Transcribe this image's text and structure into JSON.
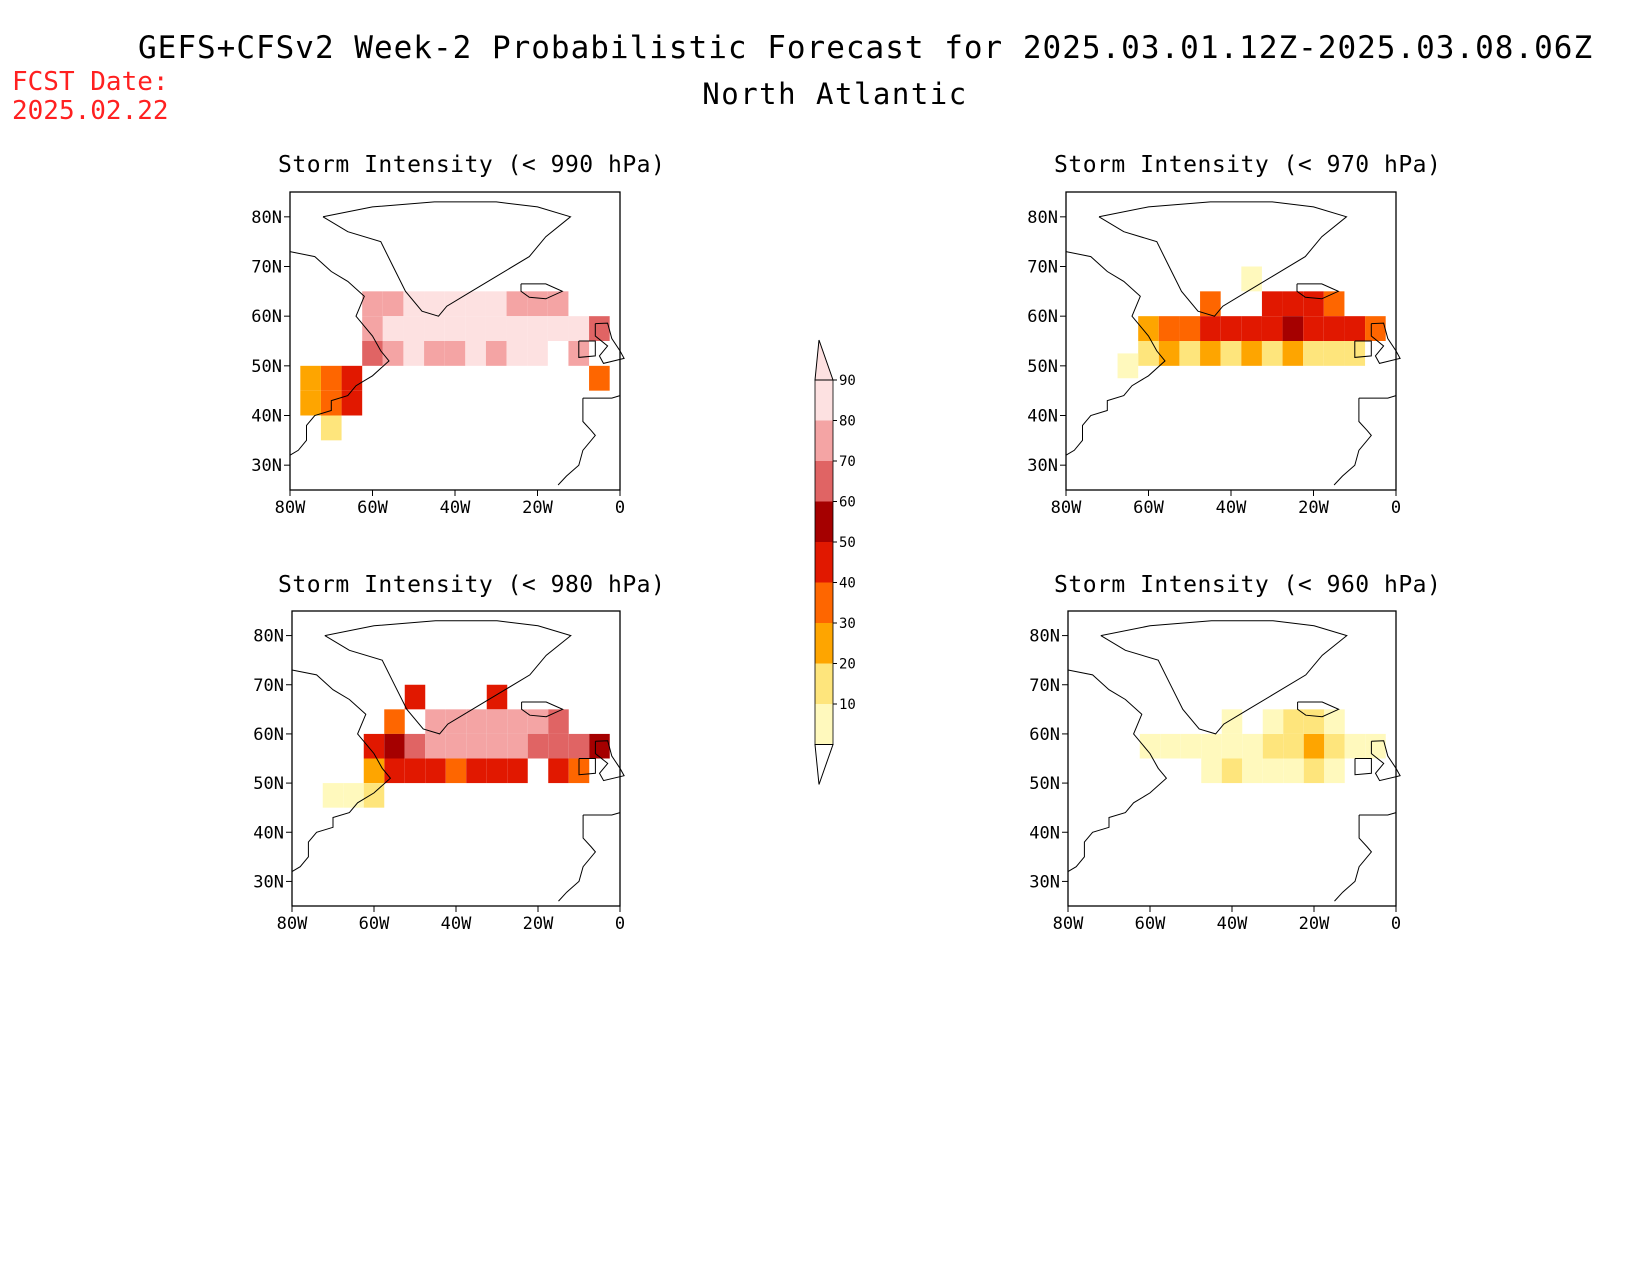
{
  "header": {
    "title": "GEFS+CFSv2 Week-2 Probabilistic Forecast for 2025.03.01.12Z-2025.03.08.06Z",
    "subtitle": "North Atlantic",
    "fcst_label": "FCST Date:",
    "fcst_date": "2025.02.22",
    "fcst_color": "#ff2020"
  },
  "chart_data": [
    {
      "type": "heatmap",
      "title": "Storm Intensity (< 990 hPa)",
      "x_ticks": [
        "80W",
        "60W",
        "40W",
        "20W",
        "0"
      ],
      "y_ticks": [
        "80N",
        "70N",
        "60N",
        "50N",
        "40N",
        "30N"
      ],
      "xlim": [
        -80,
        0
      ],
      "ylim": [
        25,
        85
      ],
      "cells": [
        {
          "lon": -60,
          "lat": 62.5,
          "p": 85
        },
        {
          "lon": -55,
          "lat": 62.5,
          "p": 85
        },
        {
          "lon": -50,
          "lat": 62.5,
          "p": 95
        },
        {
          "lon": -45,
          "lat": 62.5,
          "p": 95
        },
        {
          "lon": -40,
          "lat": 62.5,
          "p": 95
        },
        {
          "lon": -35,
          "lat": 62.5,
          "p": 95
        },
        {
          "lon": -30,
          "lat": 62.5,
          "p": 95
        },
        {
          "lon": -25,
          "lat": 62.5,
          "p": 85
        },
        {
          "lon": -20,
          "lat": 62.5,
          "p": 85
        },
        {
          "lon": -15,
          "lat": 62.5,
          "p": 85
        },
        {
          "lon": -60,
          "lat": 57.5,
          "p": 85
        },
        {
          "lon": -55,
          "lat": 57.5,
          "p": 95
        },
        {
          "lon": -50,
          "lat": 57.5,
          "p": 95
        },
        {
          "lon": -45,
          "lat": 57.5,
          "p": 95
        },
        {
          "lon": -40,
          "lat": 57.5,
          "p": 95
        },
        {
          "lon": -35,
          "lat": 57.5,
          "p": 95
        },
        {
          "lon": -30,
          "lat": 57.5,
          "p": 95
        },
        {
          "lon": -25,
          "lat": 57.5,
          "p": 95
        },
        {
          "lon": -20,
          "lat": 57.5,
          "p": 95
        },
        {
          "lon": -15,
          "lat": 57.5,
          "p": 95
        },
        {
          "lon": -10,
          "lat": 57.5,
          "p": 95
        },
        {
          "lon": -5,
          "lat": 57.5,
          "p": 75
        },
        {
          "lon": -60,
          "lat": 52.5,
          "p": 75
        },
        {
          "lon": -55,
          "lat": 52.5,
          "p": 85
        },
        {
          "lon": -50,
          "lat": 52.5,
          "p": 95
        },
        {
          "lon": -45,
          "lat": 52.5,
          "p": 85
        },
        {
          "lon": -40,
          "lat": 52.5,
          "p": 85
        },
        {
          "lon": -35,
          "lat": 52.5,
          "p": 95
        },
        {
          "lon": -30,
          "lat": 52.5,
          "p": 85
        },
        {
          "lon": -25,
          "lat": 52.5,
          "p": 95
        },
        {
          "lon": -20,
          "lat": 52.5,
          "p": 95
        },
        {
          "lon": -10,
          "lat": 52.5,
          "p": 85
        },
        {
          "lon": -65,
          "lat": 47.5,
          "p": 55
        },
        {
          "lon": -70,
          "lat": 47.5,
          "p": 45
        },
        {
          "lon": -75,
          "lat": 47.5,
          "p": 35
        },
        {
          "lon": -65,
          "lat": 42.5,
          "p": 55
        },
        {
          "lon": -70,
          "lat": 42.5,
          "p": 45
        },
        {
          "lon": -75,
          "lat": 42.5,
          "p": 35
        },
        {
          "lon": -70,
          "lat": 37.5,
          "p": 25
        },
        {
          "lon": -5,
          "lat": 47.5,
          "p": 45
        }
      ]
    },
    {
      "type": "heatmap",
      "title": "Storm Intensity (< 970 hPa)",
      "x_ticks": [
        "80W",
        "60W",
        "40W",
        "20W",
        "0"
      ],
      "y_ticks": [
        "80N",
        "70N",
        "60N",
        "50N",
        "40N",
        "30N"
      ],
      "xlim": [
        -80,
        0
      ],
      "ylim": [
        25,
        85
      ],
      "cells": [
        {
          "lon": -45,
          "lat": 62.5,
          "p": 45
        },
        {
          "lon": -30,
          "lat": 62.5,
          "p": 55
        },
        {
          "lon": -25,
          "lat": 62.5,
          "p": 55
        },
        {
          "lon": -20,
          "lat": 62.5,
          "p": 55
        },
        {
          "lon": -15,
          "lat": 62.5,
          "p": 45
        },
        {
          "lon": -35,
          "lat": 67.5,
          "p": 15
        },
        {
          "lon": -60,
          "lat": 57.5,
          "p": 35
        },
        {
          "lon": -55,
          "lat": 57.5,
          "p": 45
        },
        {
          "lon": -50,
          "lat": 57.5,
          "p": 45
        },
        {
          "lon": -45,
          "lat": 57.5,
          "p": 55
        },
        {
          "lon": -40,
          "lat": 57.5,
          "p": 55
        },
        {
          "lon": -35,
          "lat": 57.5,
          "p": 55
        },
        {
          "lon": -30,
          "lat": 57.5,
          "p": 55
        },
        {
          "lon": -25,
          "lat": 57.5,
          "p": 65
        },
        {
          "lon": -20,
          "lat": 57.5,
          "p": 55
        },
        {
          "lon": -15,
          "lat": 57.5,
          "p": 55
        },
        {
          "lon": -10,
          "lat": 57.5,
          "p": 55
        },
        {
          "lon": -5,
          "lat": 57.5,
          "p": 45
        },
        {
          "lon": -60,
          "lat": 52.5,
          "p": 25
        },
        {
          "lon": -55,
          "lat": 52.5,
          "p": 35
        },
        {
          "lon": -50,
          "lat": 52.5,
          "p": 25
        },
        {
          "lon": -45,
          "lat": 52.5,
          "p": 35
        },
        {
          "lon": -40,
          "lat": 52.5,
          "p": 25
        },
        {
          "lon": -35,
          "lat": 52.5,
          "p": 35
        },
        {
          "lon": -30,
          "lat": 52.5,
          "p": 25
        },
        {
          "lon": -25,
          "lat": 52.5,
          "p": 35
        },
        {
          "lon": -20,
          "lat": 52.5,
          "p": 25
        },
        {
          "lon": -15,
          "lat": 52.5,
          "p": 25
        },
        {
          "lon": -10,
          "lat": 52.5,
          "p": 25
        },
        {
          "lon": -65,
          "lat": 50.0,
          "p": 15
        }
      ]
    },
    {
      "type": "heatmap",
      "title": "Storm Intensity (< 980 hPa)",
      "x_ticks": [
        "80W",
        "60W",
        "40W",
        "20W",
        "0"
      ],
      "y_ticks": [
        "80N",
        "70N",
        "60N",
        "50N",
        "40N",
        "30N"
      ],
      "xlim": [
        -80,
        0
      ],
      "ylim": [
        25,
        85
      ],
      "cells": [
        {
          "lon": -55,
          "lat": 62.5,
          "p": 45
        },
        {
          "lon": -50,
          "lat": 67.5,
          "p": 55
        },
        {
          "lon": -45,
          "lat": 62.5,
          "p": 85
        },
        {
          "lon": -40,
          "lat": 62.5,
          "p": 85
        },
        {
          "lon": -35,
          "lat": 62.5,
          "p": 85
        },
        {
          "lon": -30,
          "lat": 67.5,
          "p": 55
        },
        {
          "lon": -30,
          "lat": 62.5,
          "p": 85
        },
        {
          "lon": -25,
          "lat": 62.5,
          "p": 85
        },
        {
          "lon": -20,
          "lat": 62.5,
          "p": 85
        },
        {
          "lon": -15,
          "lat": 62.5,
          "p": 75
        },
        {
          "lon": -60,
          "lat": 57.5,
          "p": 55
        },
        {
          "lon": -55,
          "lat": 57.5,
          "p": 65
        },
        {
          "lon": -50,
          "lat": 57.5,
          "p": 75
        },
        {
          "lon": -45,
          "lat": 57.5,
          "p": 85
        },
        {
          "lon": -40,
          "lat": 57.5,
          "p": 85
        },
        {
          "lon": -35,
          "lat": 57.5,
          "p": 85
        },
        {
          "lon": -30,
          "lat": 57.5,
          "p": 85
        },
        {
          "lon": -25,
          "lat": 57.5,
          "p": 85
        },
        {
          "lon": -20,
          "lat": 57.5,
          "p": 75
        },
        {
          "lon": -15,
          "lat": 57.5,
          "p": 75
        },
        {
          "lon": -10,
          "lat": 57.5,
          "p": 75
        },
        {
          "lon": -5,
          "lat": 57.5,
          "p": 65
        },
        {
          "lon": -55,
          "lat": 52.5,
          "p": 55
        },
        {
          "lon": -50,
          "lat": 52.5,
          "p": 55
        },
        {
          "lon": -45,
          "lat": 52.5,
          "p": 55
        },
        {
          "lon": -40,
          "lat": 52.5,
          "p": 45
        },
        {
          "lon": -35,
          "lat": 52.5,
          "p": 55
        },
        {
          "lon": -30,
          "lat": 52.5,
          "p": 55
        },
        {
          "lon": -25,
          "lat": 52.5,
          "p": 55
        },
        {
          "lon": -15,
          "lat": 52.5,
          "p": 55
        },
        {
          "lon": -10,
          "lat": 52.5,
          "p": 45
        },
        {
          "lon": -60,
          "lat": 52.5,
          "p": 35
        },
        {
          "lon": -65,
          "lat": 47.5,
          "p": 15
        },
        {
          "lon": -70,
          "lat": 47.5,
          "p": 15
        },
        {
          "lon": -60,
          "lat": 47.5,
          "p": 25
        }
      ]
    },
    {
      "type": "heatmap",
      "title": "Storm Intensity (< 960 hPa)",
      "x_ticks": [
        "80W",
        "60W",
        "40W",
        "20W",
        "0"
      ],
      "y_ticks": [
        "80N",
        "70N",
        "60N",
        "50N",
        "40N",
        "30N"
      ],
      "xlim": [
        -80,
        0
      ],
      "ylim": [
        25,
        85
      ],
      "cells": [
        {
          "lon": -60,
          "lat": 57.5,
          "p": 15
        },
        {
          "lon": -55,
          "lat": 57.5,
          "p": 15
        },
        {
          "lon": -50,
          "lat": 57.5,
          "p": 15
        },
        {
          "lon": -45,
          "lat": 57.5,
          "p": 15
        },
        {
          "lon": -40,
          "lat": 57.5,
          "p": 15
        },
        {
          "lon": -35,
          "lat": 57.5,
          "p": 15
        },
        {
          "lon": -30,
          "lat": 57.5,
          "p": 25
        },
        {
          "lon": -25,
          "lat": 57.5,
          "p": 25
        },
        {
          "lon": -20,
          "lat": 57.5,
          "p": 35
        },
        {
          "lon": -15,
          "lat": 57.5,
          "p": 25
        },
        {
          "lon": -10,
          "lat": 57.5,
          "p": 15
        },
        {
          "lon": -5,
          "lat": 57.5,
          "p": 15
        },
        {
          "lon": -45,
          "lat": 52.5,
          "p": 15
        },
        {
          "lon": -40,
          "lat": 52.5,
          "p": 25
        },
        {
          "lon": -35,
          "lat": 52.5,
          "p": 15
        },
        {
          "lon": -30,
          "lat": 52.5,
          "p": 15
        },
        {
          "lon": -25,
          "lat": 52.5,
          "p": 15
        },
        {
          "lon": -20,
          "lat": 52.5,
          "p": 25
        },
        {
          "lon": -15,
          "lat": 52.5,
          "p": 15
        },
        {
          "lon": -30,
          "lat": 62.5,
          "p": 15
        },
        {
          "lon": -25,
          "lat": 62.5,
          "p": 25
        },
        {
          "lon": -20,
          "lat": 62.5,
          "p": 25
        },
        {
          "lon": -15,
          "lat": 62.5,
          "p": 15
        },
        {
          "lon": -40,
          "lat": 62.5,
          "p": 15
        }
      ]
    }
  ],
  "colorbar": {
    "labels": [
      "90",
      "80",
      "70",
      "60",
      "50",
      "40",
      "30",
      "20",
      "10"
    ],
    "levels": [
      10,
      20,
      30,
      40,
      50,
      60,
      70,
      80,
      90
    ],
    "colors": [
      "#fff9bd",
      "#fee57c",
      "#fea500",
      "#fe6600",
      "#e11800",
      "#a50000",
      "#e06464",
      "#f4a4a4",
      "#fde1e1"
    ]
  }
}
